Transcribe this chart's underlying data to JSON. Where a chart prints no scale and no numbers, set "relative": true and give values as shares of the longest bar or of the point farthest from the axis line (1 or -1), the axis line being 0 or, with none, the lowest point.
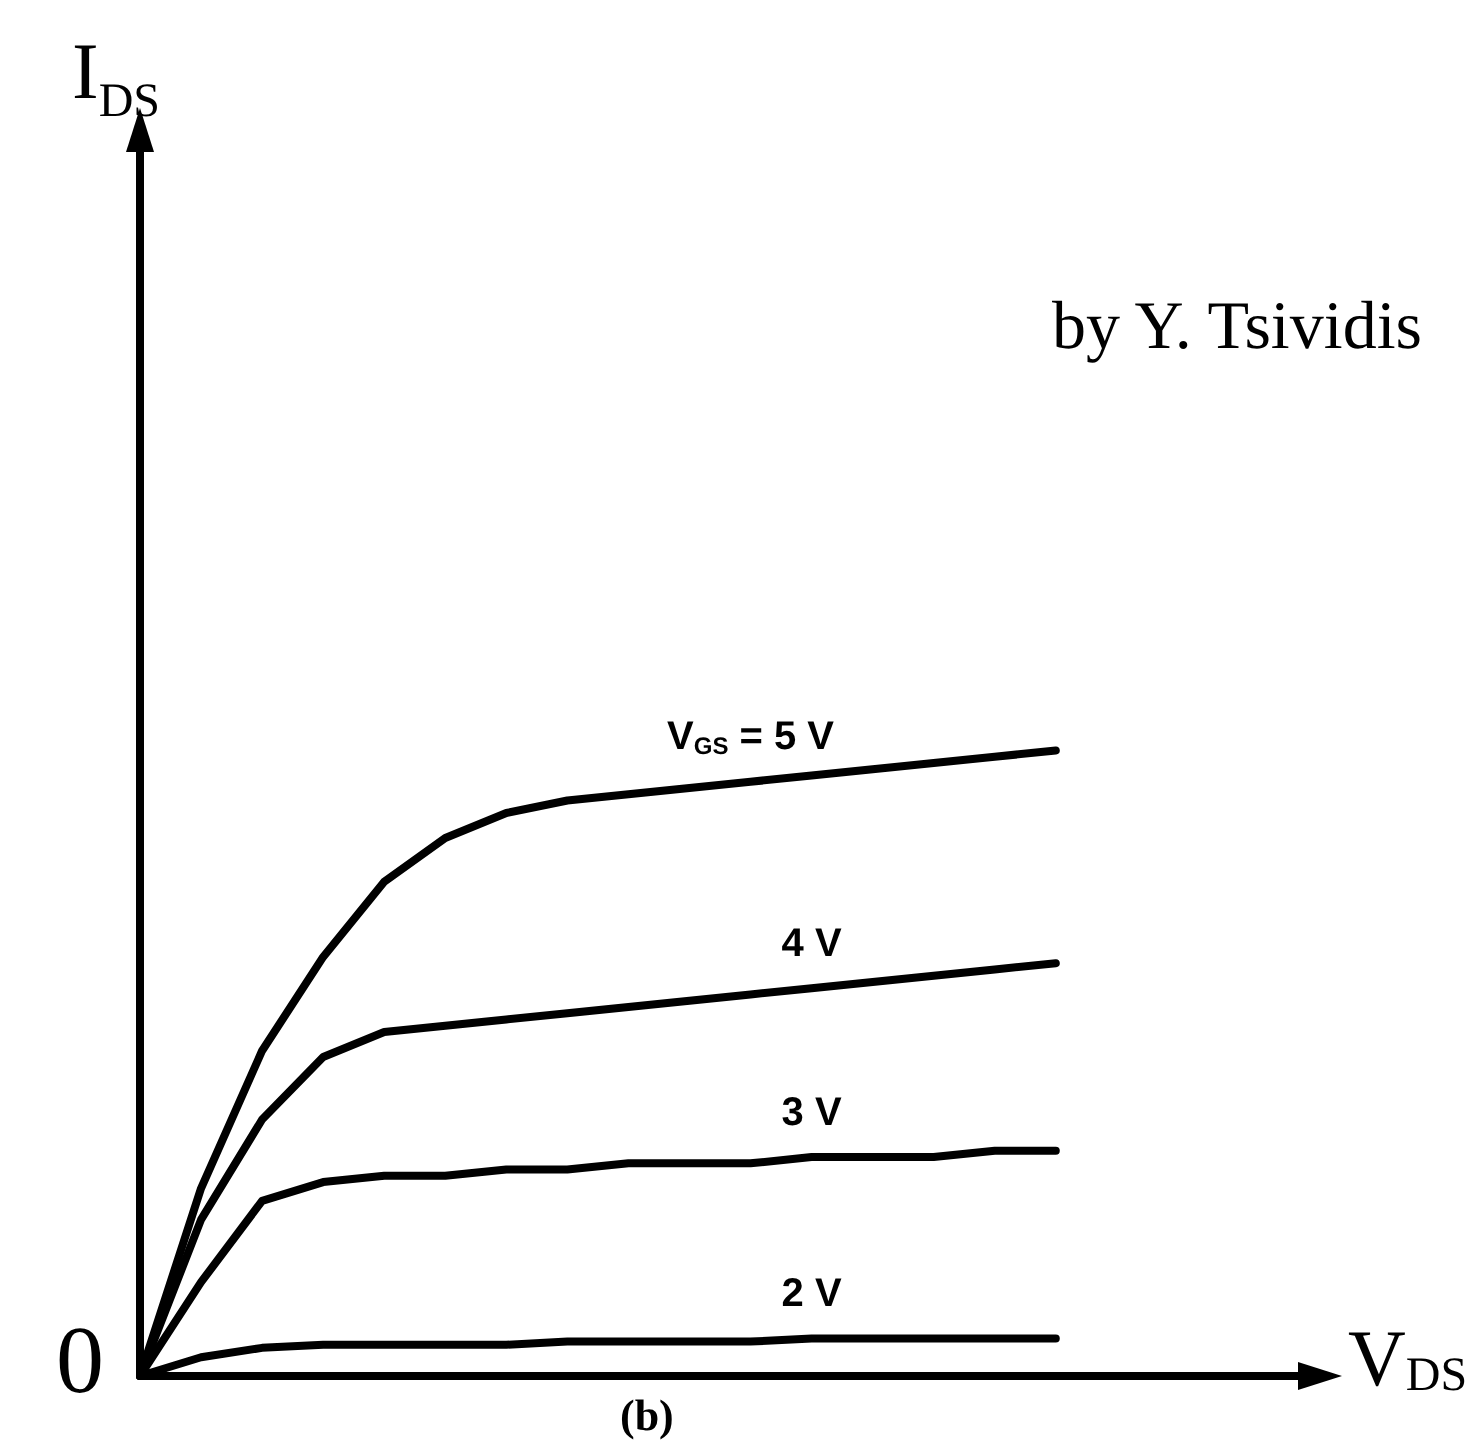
{
  "chart_data": {
    "type": "line",
    "relative": true,
    "xlabel": "V$_{DS}$",
    "categories": [
      null,
      null,
      null,
      null,
      null,
      null,
      null,
      null,
      null,
      null,
      null,
      null,
      null,
      null,
      null,
      null,
      null,
      null,
      null,
      null
    ],
    "series": [
      {
        "name": "V$_{GS}$ = 5 V",
        "color": "#000000",
        "values": [
          0,
          0.3,
          0.52,
          0.67,
          0.79,
          0.86,
          0.9,
          0.92,
          0.93,
          0.94,
          0.95,
          0.96,
          0.97,
          0.98,
          0.99,
          1,
          null,
          null,
          null,
          null
        ]
      },
      {
        "name": "4 V",
        "color": "#000000",
        "values": [
          0,
          0.25,
          0.41,
          0.51,
          0.55,
          0.56,
          0.57,
          0.58,
          0.59,
          0.6,
          0.61,
          0.62,
          0.63,
          0.64,
          0.65,
          0.66,
          null,
          null,
          null,
          null
        ]
      },
      {
        "name": "3 V",
        "color": "#000000",
        "values": [
          0,
          0.15,
          0.28,
          0.31,
          0.32,
          0.32,
          0.33,
          0.33,
          0.34,
          0.34,
          0.34,
          0.35,
          0.35,
          0.35,
          0.36,
          0.36,
          null,
          null,
          null,
          null
        ]
      },
      {
        "name": "2 V",
        "color": "#000000",
        "values": [
          0,
          0.03,
          0.045,
          0.05,
          0.05,
          0.05,
          0.05,
          0.055,
          0.055,
          0.055,
          0.055,
          0.06,
          0.06,
          0.06,
          0.06,
          0.06,
          null,
          null,
          null,
          null
        ]
      }
    ],
    "annotations": [
      "by Y. Tsividis",
      "(b)",
      "0",
      "I$_{DS}$"
    ],
    "grid": false,
    "legend": false
  }
}
